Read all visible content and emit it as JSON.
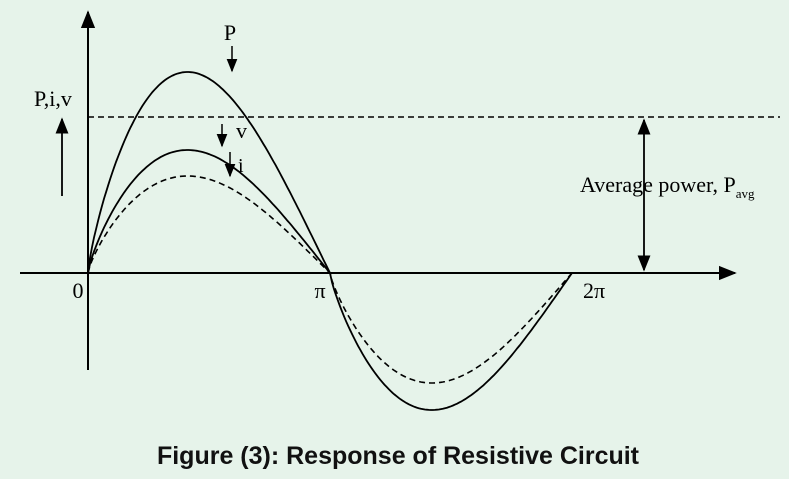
{
  "diagram": {
    "y_axis_label": "P,i,v",
    "curve_labels": {
      "power": "P",
      "voltage": "v",
      "current": "i"
    },
    "average_label": "Average power, P",
    "average_subscript": "avg",
    "x_labels": [
      "0",
      "π",
      "2π"
    ],
    "caption": "Figure (3): Response of Resistive Circuit"
  }
}
